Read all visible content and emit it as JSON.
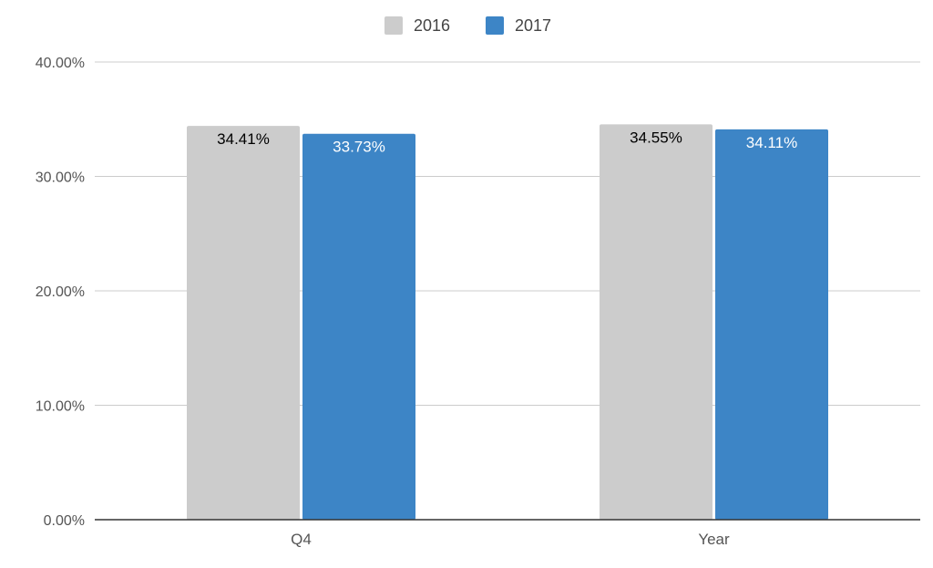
{
  "chart_data": {
    "type": "bar",
    "categories": [
      "Q4",
      "Year"
    ],
    "series": [
      {
        "name": "2016",
        "values": [
          34.41,
          34.55
        ],
        "labels": [
          "34.41%",
          "34.55%"
        ],
        "color": "#cccccc",
        "label_color": "#000000"
      },
      {
        "name": "2017",
        "values": [
          33.73,
          34.11
        ],
        "labels": [
          "33.73%",
          "34.11%"
        ],
        "color": "#3d85c6",
        "label_color": "#ffffff"
      }
    ],
    "yticks": [
      {
        "value": 0,
        "label": "0.00%"
      },
      {
        "value": 10,
        "label": "10.00%"
      },
      {
        "value": 20,
        "label": "20.00%"
      },
      {
        "value": 30,
        "label": "30.00%"
      },
      {
        "value": 40,
        "label": "40.00%"
      }
    ],
    "ylim": [
      0,
      40
    ],
    "grid": true,
    "legend_position": "top-center",
    "gridline_color": "#cccccc",
    "axis_color": "#333333"
  }
}
